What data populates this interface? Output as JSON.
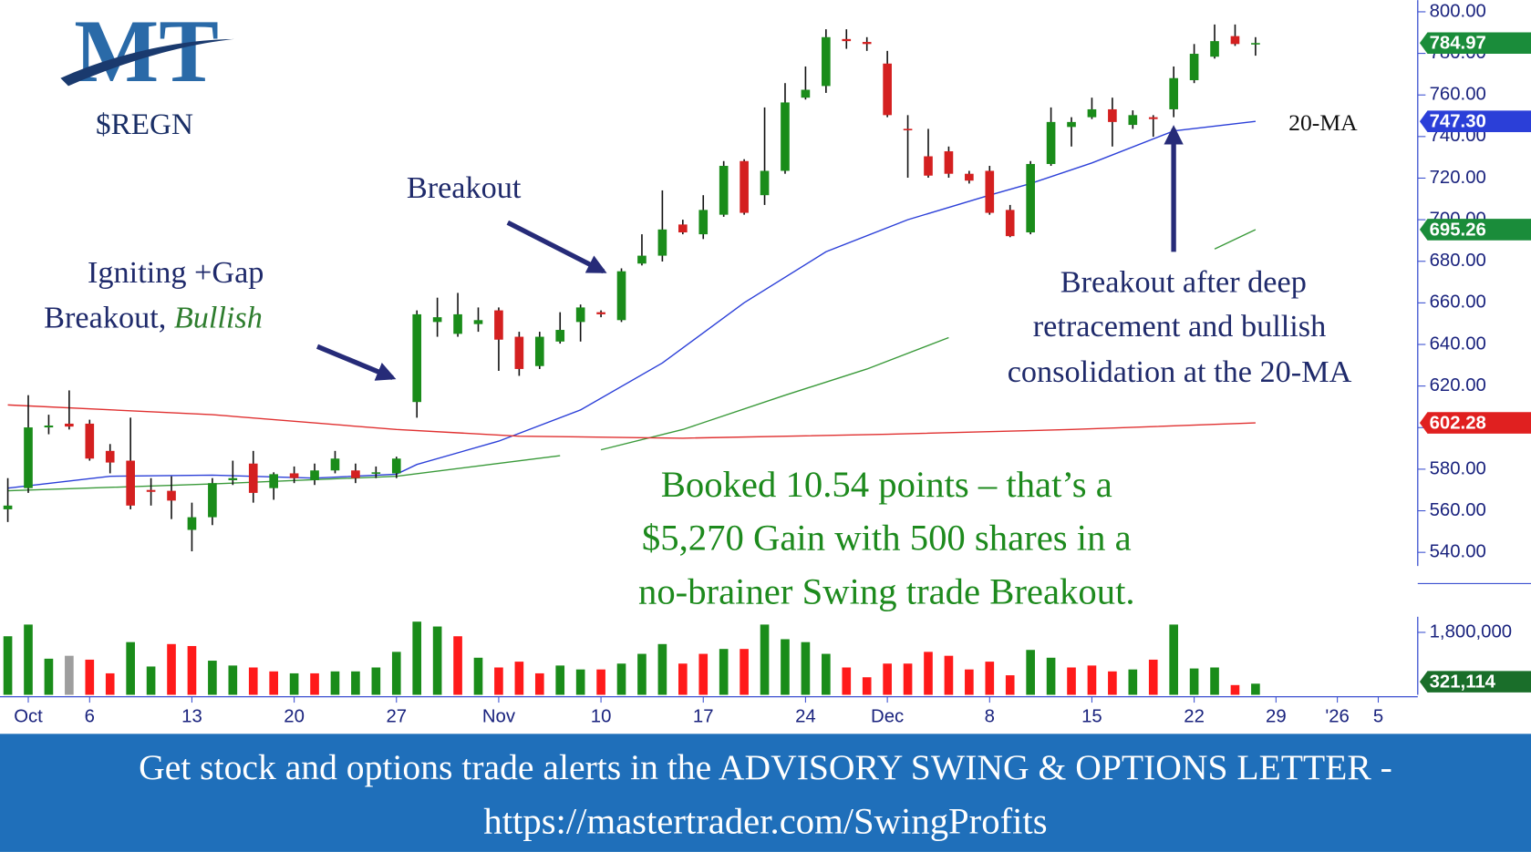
{
  "chart_data": {
    "type": "candlestick",
    "logo": "MT",
    "title": "$REGN",
    "up_color": "#1a8c1a",
    "down_color": "#d42020",
    "xlim": [
      -0.382,
      68.93
    ],
    "ylim": [
      530,
      805
    ],
    "yticks": [
      {
        "value": 540,
        "label": "540.00"
      },
      {
        "value": 560,
        "label": "560.00"
      },
      {
        "value": 580,
        "label": "580.00"
      },
      {
        "value": 600,
        "label": "600.00"
      },
      {
        "value": 620,
        "label": "620.00"
      },
      {
        "value": 640,
        "label": "640.00"
      },
      {
        "value": 660,
        "label": "660.00"
      },
      {
        "value": 680,
        "label": "680.00"
      },
      {
        "value": 700,
        "label": "700.00"
      },
      {
        "value": 720,
        "label": "720.00"
      },
      {
        "value": 740,
        "label": "740.00"
      },
      {
        "value": 760,
        "label": "760.00"
      },
      {
        "value": 780,
        "label": "780.00"
      },
      {
        "value": 800,
        "label": "800.00"
      }
    ],
    "xticks": [
      {
        "value": 1,
        "label": "Oct"
      },
      {
        "value": 4,
        "label": "6"
      },
      {
        "value": 9,
        "label": "13"
      },
      {
        "value": 14,
        "label": "20"
      },
      {
        "value": 19,
        "label": "27"
      },
      {
        "value": 24,
        "label": "Nov"
      },
      {
        "value": 29,
        "label": "10"
      },
      {
        "value": 34,
        "label": "17"
      },
      {
        "value": 39,
        "label": "24"
      },
      {
        "value": 43,
        "label": "Dec"
      },
      {
        "value": 48,
        "label": "8"
      },
      {
        "value": 53,
        "label": "15"
      },
      {
        "value": 58,
        "label": "22"
      },
      {
        "value": 62,
        "label": "29"
      },
      {
        "value": 65,
        "label": "'26"
      },
      {
        "value": 67,
        "label": "5"
      }
    ],
    "ohlc": [
      [
        560.7,
        575.7,
        554.6,
        562.5
      ],
      [
        570.9,
        615.6,
        568.6,
        600.1
      ],
      [
        600.1,
        606.2,
        596.8,
        601.0
      ],
      [
        601.9,
        617.9,
        599.1,
        600.5
      ],
      [
        601.9,
        603.8,
        584.1,
        585.1
      ],
      [
        588.8,
        592.1,
        578.0,
        583.2
      ],
      [
        584.1,
        604.8,
        560.7,
        562.5
      ],
      [
        570.0,
        575.7,
        562.5,
        569.1
      ],
      [
        569.6,
        576.6,
        556.0,
        564.9
      ],
      [
        550.8,
        563.9,
        540.5,
        556.9
      ],
      [
        556.9,
        575.7,
        553.1,
        573.3
      ],
      [
        574.7,
        584.1,
        572.4,
        575.7
      ],
      [
        582.7,
        588.8,
        563.9,
        568.6
      ],
      [
        570.9,
        578.5,
        565.3,
        577.6
      ],
      [
        578.0,
        581.3,
        573.3,
        575.7
      ],
      [
        574.7,
        582.7,
        572.4,
        579.4
      ],
      [
        579.4,
        588.8,
        578.0,
        585.1
      ],
      [
        579.4,
        582.7,
        573.3,
        575.7
      ],
      [
        578.0,
        581.3,
        575.7,
        578.5
      ],
      [
        578.0,
        586.0,
        575.7,
        585.1
      ],
      [
        612.3,
        656.4,
        604.8,
        654.5
      ],
      [
        650.8,
        662.5,
        643.7,
        653.1
      ],
      [
        645.1,
        664.8,
        643.7,
        654.5
      ],
      [
        649.8,
        657.8,
        646.1,
        651.7
      ],
      [
        656.4,
        657.8,
        627.3,
        642.3
      ],
      [
        643.7,
        646.1,
        624.9,
        628.2
      ],
      [
        629.6,
        646.1,
        628.2,
        643.7
      ],
      [
        641.4,
        655.5,
        640.4,
        647.0
      ],
      [
        650.8,
        659.2,
        641.4,
        657.8
      ],
      [
        655.5,
        656.4,
        653.1,
        654.5
      ],
      [
        651.7,
        676.6,
        650.8,
        675.2
      ],
      [
        678.9,
        693.0,
        678.0,
        682.7
      ],
      [
        682.7,
        714.1,
        679.9,
        695.3
      ],
      [
        697.7,
        700.0,
        693.0,
        693.9
      ],
      [
        693.0,
        711.8,
        690.7,
        704.7
      ],
      [
        702.4,
        728.2,
        701.4,
        725.9
      ],
      [
        728.2,
        729.1,
        702.4,
        703.3
      ],
      [
        711.8,
        754.0,
        707.1,
        723.5
      ],
      [
        723.5,
        765.7,
        722.1,
        756.4
      ],
      [
        758.7,
        773.7,
        757.8,
        762.5
      ],
      [
        764.3,
        791.6,
        761.0,
        787.8
      ],
      [
        786.9,
        791.6,
        782.2,
        785.9
      ],
      [
        785.5,
        787.8,
        781.2,
        784.5
      ],
      [
        775.1,
        781.2,
        749.3,
        750.3
      ],
      [
        743.7,
        750.3,
        720.2,
        743.2
      ],
      [
        730.5,
        743.7,
        720.2,
        721.2
      ],
      [
        732.9,
        735.2,
        720.2,
        722.1
      ],
      [
        722.1,
        723.5,
        717.4,
        718.8
      ],
      [
        723.5,
        725.9,
        702.4,
        703.3
      ],
      [
        704.7,
        707.1,
        691.6,
        692.1
      ],
      [
        693.9,
        728.2,
        693.0,
        726.8
      ],
      [
        726.8,
        754.0,
        725.9,
        747.0
      ],
      [
        744.6,
        749.3,
        735.2,
        747.0
      ],
      [
        749.3,
        758.7,
        748.4,
        753.1
      ],
      [
        753.1,
        758.7,
        735.2,
        747.0
      ],
      [
        745.6,
        752.6,
        743.7,
        750.3
      ],
      [
        749.3,
        750.3,
        739.9,
        748.4
      ],
      [
        753.1,
        773.7,
        749.3,
        768.1
      ],
      [
        767.1,
        784.5,
        765.7,
        779.8
      ],
      [
        778.4,
        793.9,
        777.5,
        785.9
      ],
      [
        788.3,
        793.9,
        783.6,
        784.5
      ],
      [
        784.5,
        787.8,
        778.9,
        784.97
      ]
    ],
    "series": [
      {
        "name": "20-MA",
        "color": "#2b3fd8",
        "x": [
          0,
          5,
          10,
          15,
          19,
          20,
          24,
          28,
          32,
          36,
          40,
          44,
          48,
          50,
          53,
          57,
          61
        ],
        "values": [
          570.9,
          576.6,
          577.1,
          575.7,
          577.6,
          582.3,
          593.5,
          608.5,
          631.1,
          660.1,
          684.6,
          700.0,
          711.8,
          717.4,
          727.3,
          742.7,
          747.3
        ]
      },
      {
        "color": "#3a9a3a",
        "x": [
          0,
          10,
          19,
          27,
          28,
          29,
          33,
          38,
          42,
          46,
          47,
          59,
          61
        ],
        "values": [
          569.6,
          572.9,
          576.6,
          586.5,
          null,
          589.3,
          599.1,
          615.6,
          628.2,
          643.3,
          null,
          685.9,
          695.26
        ]
      },
      {
        "color": "#e03030",
        "x": [
          0,
          10,
          19,
          25,
          33,
          43,
          52,
          61
        ],
        "values": [
          610.9,
          606.2,
          599.1,
          595.9,
          594.9,
          596.8,
          599.1,
          602.28
        ]
      }
    ],
    "last_labels": [
      {
        "value": 784.97,
        "label": "784.97",
        "color": "#1a8c3a"
      },
      {
        "value": 747.3,
        "label": "747.30",
        "color": "#2b3fd8"
      },
      {
        "value": 695.26,
        "label": "695.26",
        "color": "#1a8c3a"
      },
      {
        "value": 602.28,
        "label": "602.28",
        "color": "#e02020"
      }
    ],
    "volume": {
      "vlim": [
        0,
        2250000
      ],
      "vticks": [
        {
          "value": 1800000,
          "label": "1,800,000"
        }
      ],
      "values": [
        1688000,
        2025000,
        1041000,
        1125000,
        1013000,
        619000,
        1519000,
        816000,
        1463000,
        1406000,
        984000,
        844000,
        788000,
        675000,
        619000,
        619000,
        675000,
        675000,
        788000,
        1238000,
        2109000,
        1969000,
        1688000,
        1069000,
        788000,
        956000,
        619000,
        844000,
        731000,
        731000,
        900000,
        1181000,
        1463000,
        900000,
        1181000,
        1322000,
        1322000,
        2025000,
        1603000,
        1519000,
        1181000,
        788000,
        506000,
        900000,
        900000,
        1238000,
        1125000,
        731000,
        956000,
        563000,
        1294000,
        1069000,
        788000,
        844000,
        675000,
        731000,
        1013000,
        2025000,
        759000,
        788000,
        281000,
        321114
      ],
      "colors": [
        "#1a8c1a",
        "#1a8c1a",
        "#1a8c1a",
        "#9e9e9e",
        "#ff1a1a",
        "#ff1a1a",
        "#1a8c1a",
        "#1a8c1a",
        "#ff1a1a",
        "#ff1a1a",
        "#1a8c1a",
        "#1a8c1a",
        "#ff1a1a",
        "#ff1a1a",
        "#1a8c1a",
        "#ff1a1a",
        "#1a8c1a",
        "#1a8c1a",
        "#1a8c1a",
        "#1a8c1a",
        "#1a8c1a",
        "#1a8c1a",
        "#ff1a1a",
        "#1a8c1a",
        "#ff1a1a",
        "#ff1a1a",
        "#ff1a1a",
        "#1a8c1a",
        "#1a8c1a",
        "#ff1a1a",
        "#1a8c1a",
        "#1a8c1a",
        "#1a8c1a",
        "#ff1a1a",
        "#ff1a1a",
        "#1a8c1a",
        "#ff1a1a",
        "#1a8c1a",
        "#1a8c1a",
        "#1a8c1a",
        "#1a8c1a",
        "#ff1a1a",
        "#ff1a1a",
        "#ff1a1a",
        "#ff1a1a",
        "#ff1a1a",
        "#ff1a1a",
        "#ff1a1a",
        "#ff1a1a",
        "#ff1a1a",
        "#1a8c1a",
        "#1a8c1a",
        "#ff1a1a",
        "#ff1a1a",
        "#ff1a1a",
        "#1a8c1a",
        "#ff1a1a",
        "#1a8c1a",
        "#1a8c1a",
        "#1a8c1a",
        "#ff1a1a",
        "#1a8c1a"
      ],
      "last_label": {
        "value": 321114,
        "label": "321,114",
        "color": "#1a6e2a"
      }
    },
    "annotations": {
      "igniting": [
        "Igniting +Gap",
        "Breakout, ",
        "Bullish"
      ],
      "breakout": "Breakout",
      "ma_label": "20-MA",
      "retracement": [
        "Breakout after deep",
        "retracement and bullish",
        "consolidation at the 20-MA"
      ],
      "booked": [
        "Booked 10.54 points – that’s a",
        "$5,270 Gain with 500 shares in a",
        "no-brainer Swing trade Breakout."
      ]
    },
    "footer": [
      "Get stock and options trade alerts in the ADVISORY SWING & OPTIONS LETTER -",
      "https://mastertrader.com/SwingProfits"
    ]
  }
}
